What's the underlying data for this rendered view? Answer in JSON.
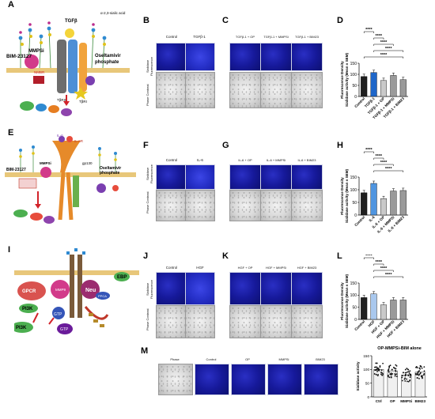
{
  "panels": {
    "A": {
      "label": "A",
      "texts": {
        "mmpsi": "MMPSi",
        "bim": "BIM-23127",
        "tgfb": "TGFβ",
        "sialic": "α-2,3-sialic acid",
        "osel": "Oseltamivir\nphosphate",
        "nmbr": "NMBR",
        "tbr1": "TβRI",
        "tbr2": "TβRII"
      }
    },
    "B": {
      "label": "B",
      "headers": [
        "Control",
        "TGFβ-1"
      ]
    },
    "C": {
      "label": "C",
      "headers": [
        "TGFβ-1 + OP",
        "TGFβ-1 + MMPSi",
        "TGFβ-1 + BIM23"
      ]
    },
    "E": {
      "label": "E",
      "texts": {
        "bim": "BIM-23127",
        "mmpsi": "MMPSi",
        "osel": "Oseltamivir\nphosphate",
        "il6": "IL-6",
        "il6r": "IL-6R",
        "gp130": "gp130"
      }
    },
    "F": {
      "label": "F",
      "headers": [
        "Control",
        "IL-6"
      ]
    },
    "G": {
      "label": "G",
      "headers": [
        "IL-6 + OP",
        "IL-6 + MMPSi",
        "IL-6 + BIM23"
      ]
    },
    "I": {
      "label": "I",
      "texts": {
        "ebp": "EBP",
        "gpcr": "GPCR",
        "neu": "Neu",
        "mmp9": "MMP9",
        "pi3k": "PI3K",
        "gtp": "GTP",
        "ppca": "PPCA"
      }
    },
    "J": {
      "label": "J",
      "headers": [
        "Control",
        "HGF"
      ]
    },
    "K": {
      "label": "K",
      "headers": [
        "HGF + OP",
        "HGF + MMPSi",
        "HGF + BIM23"
      ]
    },
    "M": {
      "label": "M",
      "headers": [
        "Phase",
        "Control",
        "OP",
        "MMPSi",
        "BIM23"
      ]
    }
  },
  "row_labels": {
    "fluo": "Sialidase\nFluorescence",
    "phase": "Phase Contrast"
  },
  "stat": "****",
  "colors": {
    "fluo": "#1a1fa8",
    "ctrl": "#1f1f1f",
    "d_treat": "#1e66c9",
    "h_treat": "#4f95e0",
    "l_treat": "#a9c8ee",
    "gray": "#9a9a9a",
    "light": "#c9c9c9"
  },
  "chart_data": [
    {
      "panel": "D",
      "type": "bar",
      "categories": [
        "Control",
        "TGFβ-1",
        "TGFβ-1 + OP",
        "TGFβ-1 + MMPSi",
        "TGFβ-1 + BIM23"
      ],
      "values": [
        90,
        108,
        72,
        95,
        76
      ],
      "ylabel": "Fluorescence Density\nSialidase activity (Mean ± SEM)",
      "ylim": [
        0,
        150
      ],
      "yticks": [
        0,
        50,
        100,
        150
      ],
      "significance": [
        "****",
        "****",
        "****",
        "****",
        "****"
      ]
    },
    {
      "panel": "H",
      "type": "bar",
      "categories": [
        "Control",
        "IL-6",
        "IL-6 + OP",
        "IL-6 + MMPSi",
        "IL-6 + BIM23"
      ],
      "values": [
        88,
        125,
        65,
        95,
        97
      ],
      "ylabel": "Fluorescence Density\nSialidase activity (Mean ± SEM)",
      "ylim": [
        0,
        150
      ],
      "yticks": [
        0,
        50,
        100,
        150
      ],
      "significance": [
        "****",
        "****",
        "****",
        "****"
      ]
    },
    {
      "panel": "L",
      "type": "bar",
      "categories": [
        "Control",
        "HGF",
        "HGF + OP",
        "HGF + MMPSi",
        "HGF + BIM23"
      ],
      "values": [
        90,
        105,
        60,
        80,
        80
      ],
      "ylabel": "Fluorescence Density\nSialidase activity (Mean ± SEM)",
      "ylim": [
        0,
        150
      ],
      "yticks": [
        0,
        50,
        100,
        150
      ],
      "significance": [
        "****",
        "****",
        "****",
        "****"
      ]
    },
    {
      "panel": "OP-MMPSi-BIM alone",
      "type": "bar",
      "title": "OP-MMPSi-BIM alone",
      "categories": [
        "Ctrl",
        "OP",
        "MMPSi",
        "BIM23"
      ],
      "values": [
        100,
        95,
        80,
        90
      ],
      "ylabel": "Sialidase activity",
      "ylim": [
        0,
        150
      ],
      "yticks": [
        0,
        50,
        100,
        150
      ]
    }
  ]
}
